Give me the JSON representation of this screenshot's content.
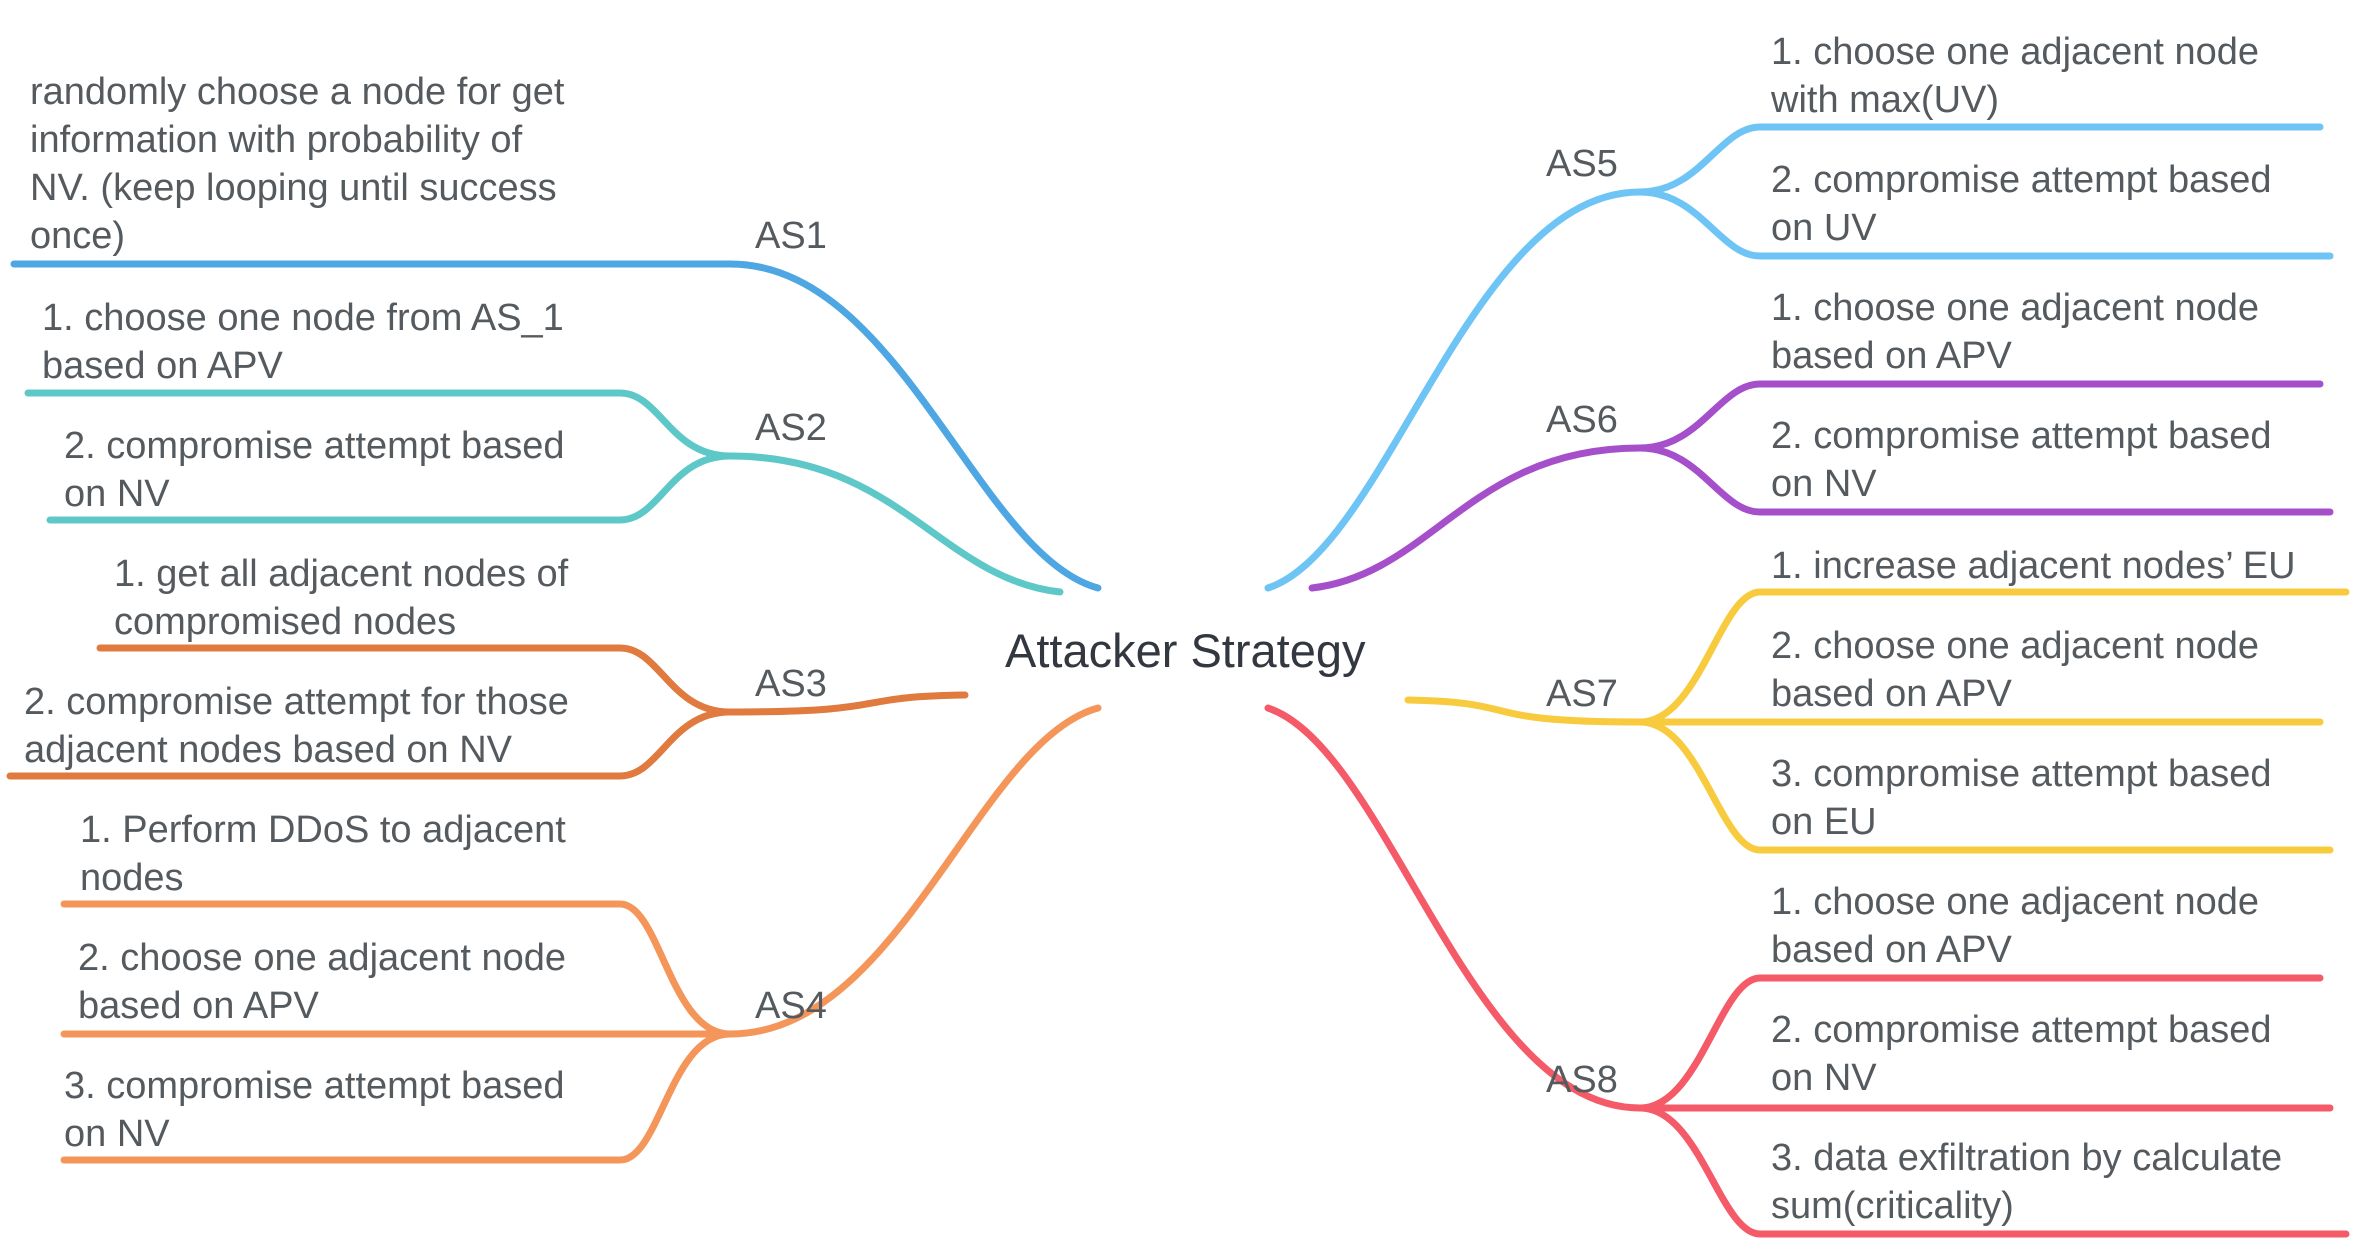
{
  "root": {
    "label": "Attacker Strategy"
  },
  "strategies": [
    {
      "id": "AS1",
      "label": "AS1",
      "color": "#4ea7e3",
      "steps": [
        "randomly choose a node for get\ninformation with probability of\nNV. (keep looping until success\nonce)"
      ]
    },
    {
      "id": "AS2",
      "label": "AS2",
      "color": "#5ec8c8",
      "steps": [
        "1. choose one node from AS_1\nbased on APV",
        "2. compromise attempt based\non NV"
      ]
    },
    {
      "id": "AS3",
      "label": "AS3",
      "color": "#e07a3e",
      "steps": [
        "1. get all adjacent nodes of\ncompromised nodes",
        "2. compromise attempt for those\nadjacent nodes based on NV"
      ]
    },
    {
      "id": "AS4",
      "label": "AS4",
      "color": "#f4965a",
      "steps": [
        "1. Perform DDoS to adjacent\nnodes",
        "2. choose one adjacent node\nbased on APV",
        "3. compromise attempt based\non NV"
      ]
    },
    {
      "id": "AS5",
      "label": "AS5",
      "color": "#6ec4f5",
      "steps": [
        "1. choose one adjacent node\nwith max(UV)",
        "2. compromise attempt based\non UV"
      ]
    },
    {
      "id": "AS6",
      "label": "AS6",
      "color": "#a64fca",
      "steps": [
        "1. choose one adjacent node\nbased on APV",
        "2. compromise attempt based\non NV"
      ]
    },
    {
      "id": "AS7",
      "label": "AS7",
      "color": "#f8cb3e",
      "steps": [
        "1. increase adjacent nodes’ EU",
        "2. choose one adjacent node\nbased on APV",
        "3. compromise attempt based\non EU"
      ]
    },
    {
      "id": "AS8",
      "label": "AS8",
      "color": "#f55a68",
      "steps": [
        "1. choose one adjacent node\nbased on APV",
        "2. compromise attempt based\non NV",
        "3. data exfiltration by calculate\nsum(criticality)"
      ]
    }
  ]
}
